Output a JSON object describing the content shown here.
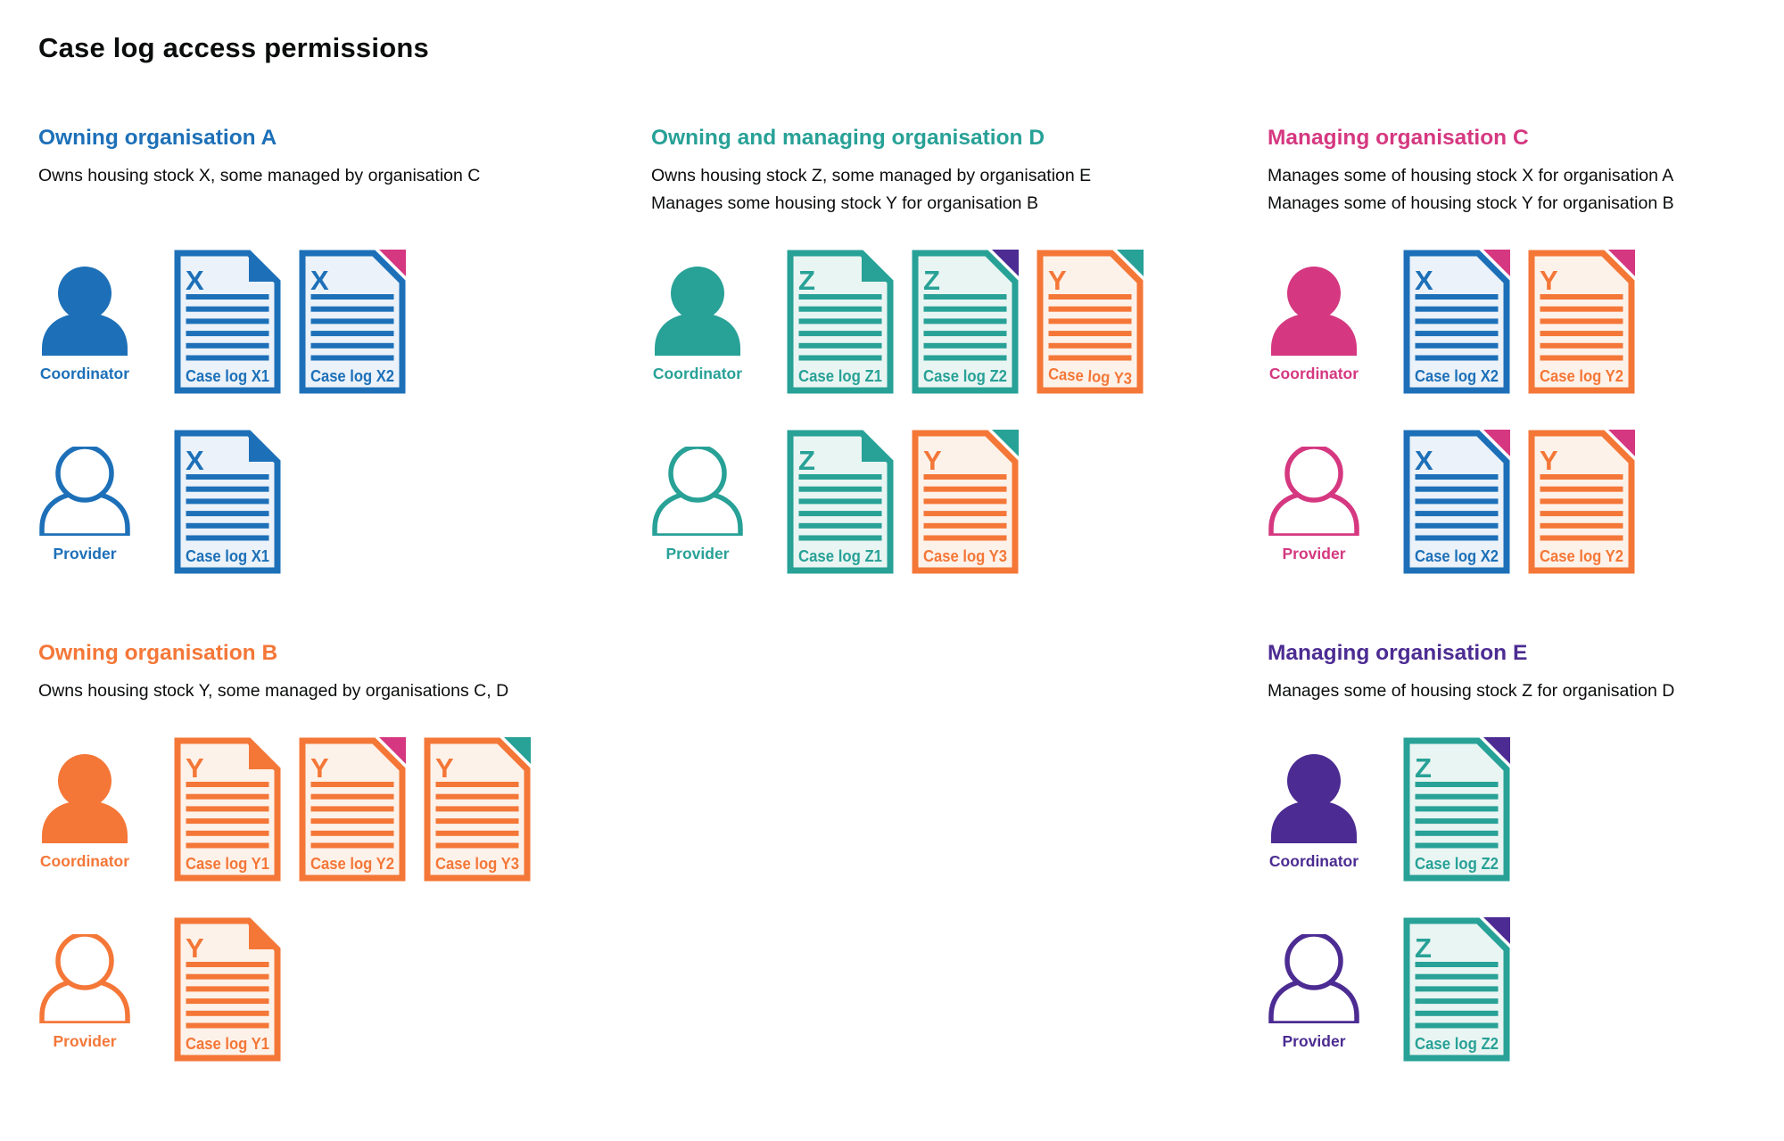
{
  "title": "Case log access permissions",
  "colors": {
    "blue": "#1d70b8",
    "teal": "#28a197",
    "pink": "#d53880",
    "orange": "#f47738",
    "purple": "#4c2c92",
    "text": "#0b0c0c",
    "tint_blue": "#ebf2f9",
    "tint_teal": "#e9f5f2",
    "tint_orange": "#fdf2e9"
  },
  "sections": [
    {
      "id": "A",
      "heading": "Owning organisation A",
      "color": "blue",
      "description": [
        "Owns housing stock X, some managed by organisation C"
      ],
      "rows": [
        {
          "person": {
            "role": "Coordinator",
            "style": "solid"
          },
          "docs": [
            {
              "letter": "X",
              "label": "Case log X1",
              "doc_color": "blue",
              "fold_color": "blue"
            },
            {
              "letter": "X",
              "label": "Case log X2",
              "doc_color": "blue",
              "fold_color": "pink"
            }
          ]
        },
        {
          "person": {
            "role": "Provider",
            "style": "outline"
          },
          "docs": [
            {
              "letter": "X",
              "label": "Case log X1",
              "doc_color": "blue",
              "fold_color": "blue"
            }
          ]
        }
      ]
    },
    {
      "id": "D",
      "heading": "Owning and managing organisation D",
      "color": "teal",
      "description": [
        "Owns housing stock Z, some managed by organisation E",
        "Manages some housing stock Y for organisation B"
      ],
      "rows": [
        {
          "person": {
            "role": "Coordinator",
            "style": "solid"
          },
          "docs": [
            {
              "letter": "Z",
              "label": "Case log Z1",
              "doc_color": "teal",
              "fold_color": "teal"
            },
            {
              "letter": "Z",
              "label": "Case log Z2",
              "doc_color": "teal",
              "fold_color": "purple"
            },
            {
              "letter": "Y",
              "label": "Case log Y3",
              "doc_color": "orange",
              "fold_color": "teal",
              "label_tilt": true
            }
          ]
        },
        {
          "person": {
            "role": "Provider",
            "style": "outline"
          },
          "docs": [
            {
              "letter": "Z",
              "label": "Case log Z1",
              "doc_color": "teal",
              "fold_color": "teal"
            },
            {
              "letter": "Y",
              "label": "Case log Y3",
              "doc_color": "orange",
              "fold_color": "teal"
            }
          ]
        }
      ]
    },
    {
      "id": "C",
      "heading": "Managing organisation C",
      "color": "pink",
      "description": [
        "Manages some of housing stock X for organisation A",
        "Manages some of housing stock Y for organisation B"
      ],
      "rows": [
        {
          "person": {
            "role": "Coordinator",
            "style": "solid"
          },
          "docs": [
            {
              "letter": "X",
              "label": "Case log X2",
              "doc_color": "blue",
              "fold_color": "pink"
            },
            {
              "letter": "Y",
              "label": "Case log Y2",
              "doc_color": "orange",
              "fold_color": "pink"
            }
          ]
        },
        {
          "person": {
            "role": "Provider",
            "style": "outline"
          },
          "docs": [
            {
              "letter": "X",
              "label": "Case log X2",
              "doc_color": "blue",
              "fold_color": "pink"
            },
            {
              "letter": "Y",
              "label": "Case log Y2",
              "doc_color": "orange",
              "fold_color": "pink"
            }
          ]
        }
      ]
    },
    {
      "id": "B",
      "heading": "Owning organisation B",
      "color": "orange",
      "description": [
        "Owns housing stock Y, some managed by organisations C, D"
      ],
      "rows": [
        {
          "person": {
            "role": "Coordinator",
            "style": "solid"
          },
          "docs": [
            {
              "letter": "Y",
              "label": "Case log Y1",
              "doc_color": "orange",
              "fold_color": "orange"
            },
            {
              "letter": "Y",
              "label": "Case log Y2",
              "doc_color": "orange",
              "fold_color": "pink"
            },
            {
              "letter": "Y",
              "label": "Case log Y3",
              "doc_color": "orange",
              "fold_color": "teal"
            }
          ]
        },
        {
          "person": {
            "role": "Provider",
            "style": "outline"
          },
          "docs": [
            {
              "letter": "Y",
              "label": "Case log Y1",
              "doc_color": "orange",
              "fold_color": "orange"
            }
          ]
        }
      ]
    },
    {
      "id": "E",
      "heading": "Managing organisation E",
      "color": "purple",
      "description": [
        "Manages some of housing stock Z for organisation D"
      ],
      "rows": [
        {
          "person": {
            "role": "Coordinator",
            "style": "solid"
          },
          "docs": [
            {
              "letter": "Z",
              "label": "Case log Z2",
              "doc_color": "teal",
              "fold_color": "purple"
            }
          ]
        },
        {
          "person": {
            "role": "Provider",
            "style": "outline"
          },
          "docs": [
            {
              "letter": "Z",
              "label": "Case log Z2",
              "doc_color": "teal",
              "fold_color": "purple"
            }
          ]
        }
      ]
    }
  ]
}
